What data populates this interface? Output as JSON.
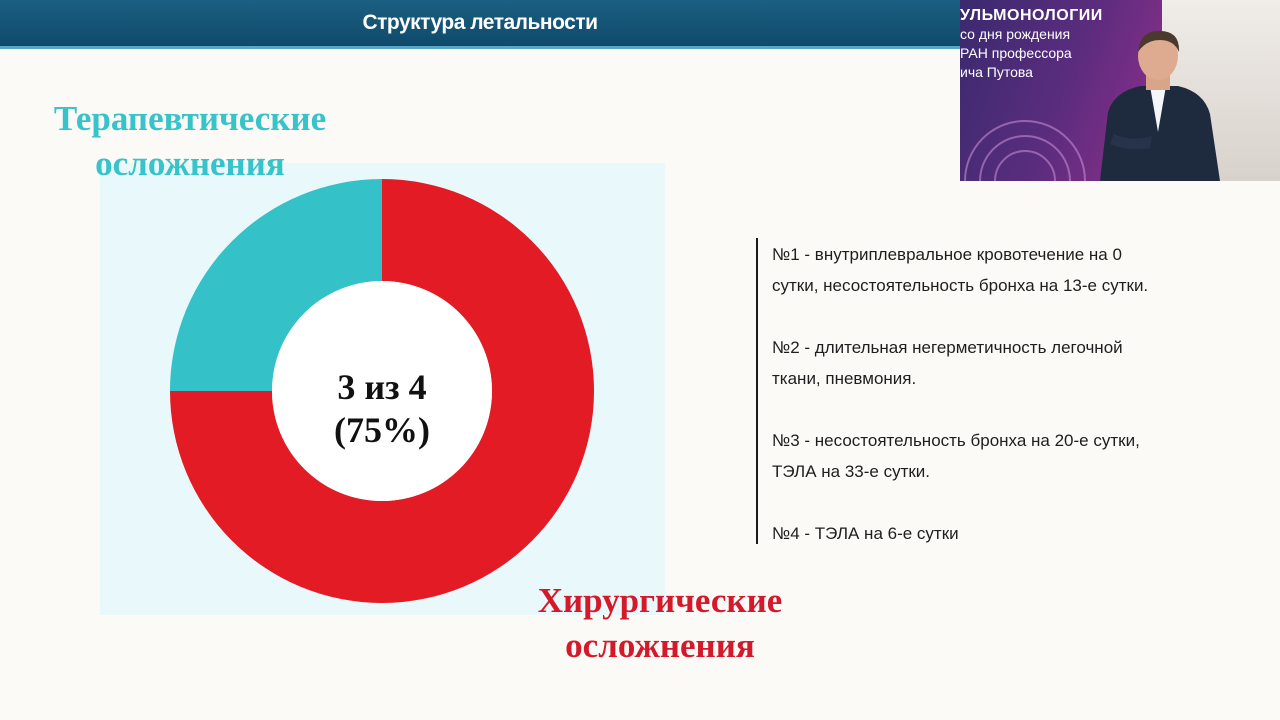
{
  "slide": {
    "title": "Структура летальности"
  },
  "chart_data": {
    "type": "pie",
    "style": "donut",
    "categories": [
      "Хирургические осложнения",
      "Терапевтические осложнения"
    ],
    "values": [
      3,
      1
    ],
    "colors": [
      "#e31b24",
      "#35c1c8"
    ],
    "center_label": [
      "3 из 4",
      "(75%)"
    ],
    "labels": {
      "therapeutic": [
        "Терапевтические",
        "осложнения"
      ],
      "surgical": [
        "Хирургические",
        "осложнения"
      ]
    },
    "annotations": [
      [
        "№1 - внутриплевральное кровотечение на 0",
        "сутки, несостоятельность бронха на 13-е сутки."
      ],
      [
        "№2 - длительная негерметичность легочной",
        "ткани, пневмония."
      ],
      [
        "№3 - несостоятельность бронха на 20-е сутки,",
        "ТЭЛА на 33-е сутки."
      ],
      [
        "№4 - ТЭЛА на 6-е сутки"
      ]
    ]
  },
  "webcam": {
    "banner_lines": [
      "УЛЬМОНОЛОГИИ",
      "со дня рождения",
      "РАН профессора",
      "ича Путова"
    ],
    "banner_color": "#8a2f88"
  }
}
